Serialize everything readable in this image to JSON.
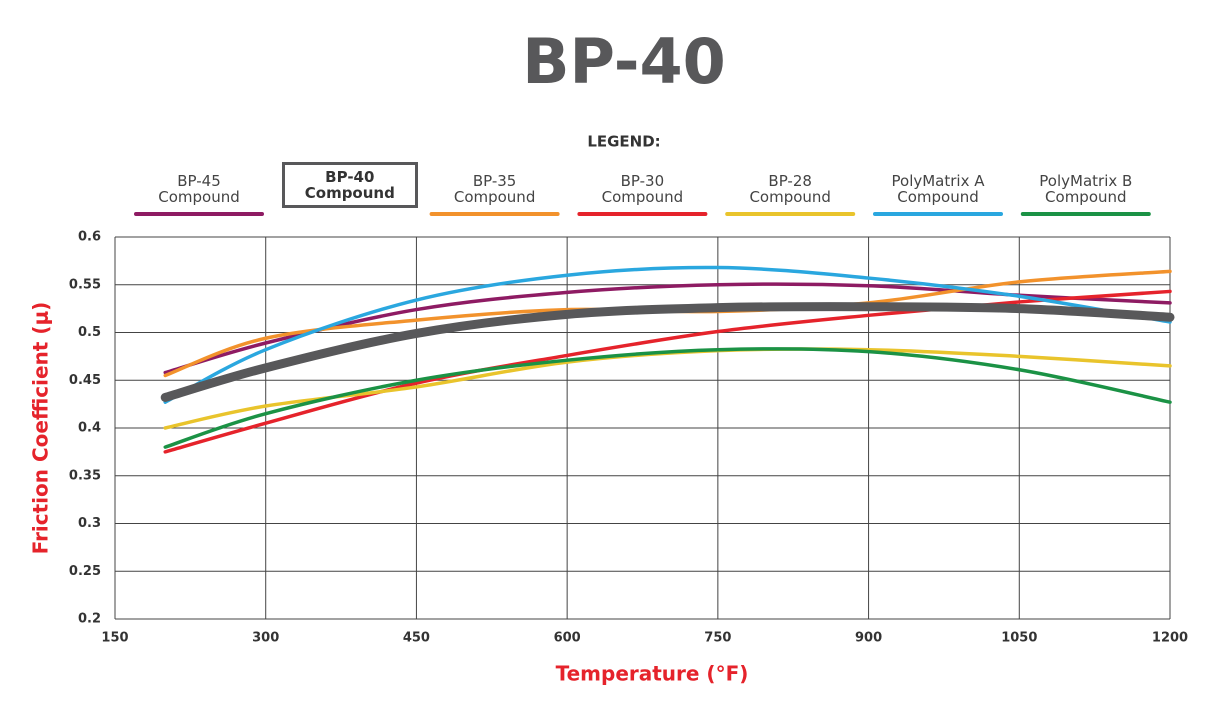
{
  "chart_data": {
    "type": "line",
    "title": "BP-40",
    "legend_title": "LEGEND:",
    "x_label": "Temperature (°F)",
    "y_label": "Friction Coefficient (μ)",
    "x": [
      200,
      300,
      450,
      600,
      750,
      900,
      1050,
      1200
    ],
    "xlim": [
      150,
      1200
    ],
    "xticks": [
      150,
      300,
      450,
      600,
      750,
      900,
      1050,
      1200
    ],
    "ylim": [
      0.2,
      0.6
    ],
    "yticks": [
      0.2,
      0.25,
      0.3,
      0.35,
      0.4,
      0.45,
      0.5,
      0.55,
      0.6
    ],
    "grid": true,
    "series": [
      {
        "name": "BP-45\nCompound",
        "color": "#8e1b63",
        "values": [
          0.458,
          0.489,
          0.524,
          0.542,
          0.55,
          0.549,
          0.539,
          0.531
        ]
      },
      {
        "name": "BP-40\nCompound",
        "color": "#58585a",
        "emphasis": true,
        "values": [
          0.432,
          0.463,
          0.499,
          0.519,
          0.526,
          0.527,
          0.525,
          0.516
        ]
      },
      {
        "name": "BP-35\nCompound",
        "color": "#f2922c",
        "values": [
          0.455,
          0.494,
          0.513,
          0.524,
          0.522,
          0.531,
          0.553,
          0.564
        ]
      },
      {
        "name": "BP-30\nCompound",
        "color": "#e5232b",
        "values": [
          0.375,
          0.405,
          0.447,
          0.476,
          0.501,
          0.518,
          0.532,
          0.543
        ]
      },
      {
        "name": "BP-28\nCompound",
        "color": "#e9c42c",
        "values": [
          0.4,
          0.423,
          0.443,
          0.469,
          0.481,
          0.482,
          0.475,
          0.465
        ]
      },
      {
        "name": "PolyMatrix A\nCompound",
        "color": "#2aa7df",
        "values": [
          0.427,
          0.482,
          0.534,
          0.56,
          0.568,
          0.557,
          0.538,
          0.511
        ]
      },
      {
        "name": "PolyMatrix B\nCompound",
        "color": "#1b9245",
        "values": [
          0.38,
          0.415,
          0.45,
          0.471,
          0.482,
          0.48,
          0.461,
          0.427
        ]
      }
    ]
  }
}
